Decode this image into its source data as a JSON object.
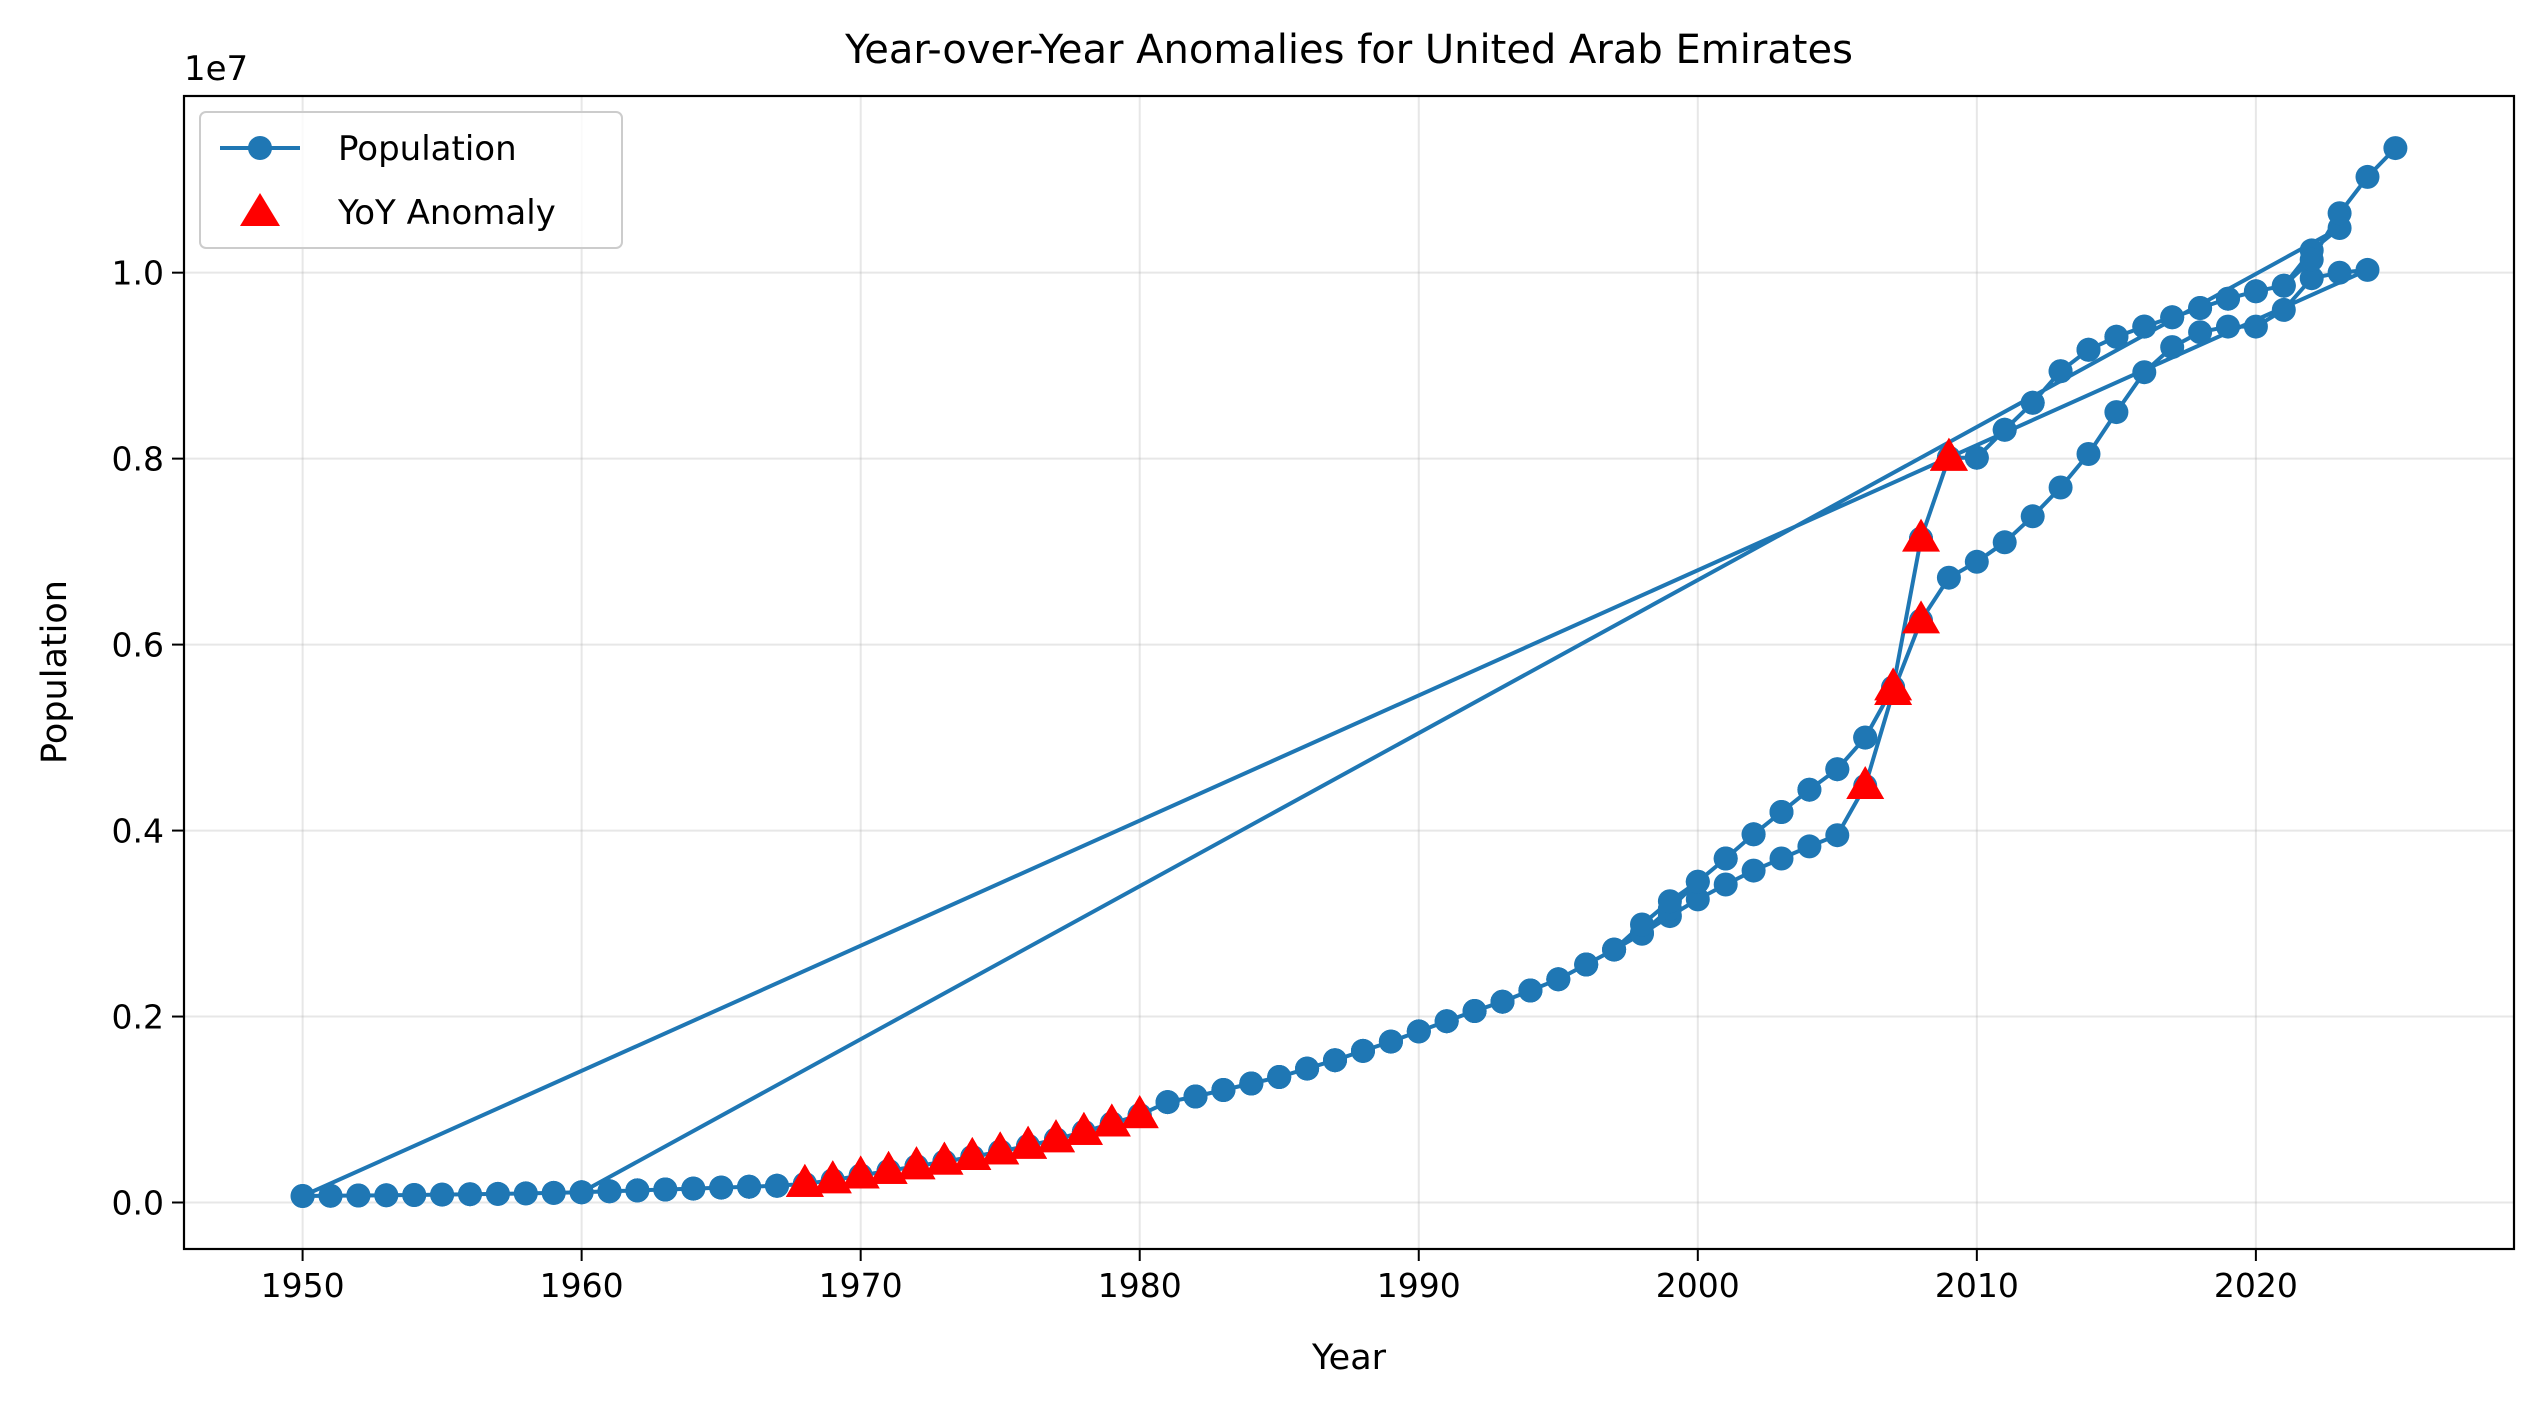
{
  "chart_data": {
    "type": "line",
    "title": "Year-over-Year Anomalies for United Arab Emirates",
    "xlabel": "Year",
    "ylabel": "Population",
    "y_offset_label": "1e7",
    "xlim": [
      1945.75,
      2029.25
    ],
    "ylim": [
      -500000,
      11900000
    ],
    "x_ticks": [
      1950,
      1960,
      1970,
      1980,
      1990,
      2000,
      2010,
      2020
    ],
    "x_tick_labels": [
      "1950",
      "1960",
      "1970",
      "1980",
      "1990",
      "2000",
      "2010",
      "2020"
    ],
    "y_ticks": [
      0,
      2000000,
      4000000,
      6000000,
      8000000,
      10000000
    ],
    "y_tick_labels": [
      "0.0",
      "0.2",
      "0.4",
      "0.6",
      "0.8",
      "1.0"
    ],
    "grid": true,
    "legend_position": "top-left",
    "colors": {
      "population": "#1f77b4",
      "anomaly": "#ff0000"
    },
    "series": [
      {
        "name": "Population",
        "style": "line-with-circle-markers",
        "x": [
          1950,
          1951,
          1952,
          1953,
          1954,
          1955,
          1956,
          1957,
          1958,
          1959,
          1960,
          1961,
          1962,
          1963,
          1964,
          1965,
          1966,
          1967,
          1968,
          1969,
          1970,
          1971,
          1972,
          1973,
          1974,
          1975,
          1976,
          1977,
          1978,
          1979,
          1980,
          1981,
          1982,
          1983,
          1984,
          1985,
          1986,
          1987,
          1988,
          1989,
          1990,
          1991,
          1992,
          1993,
          1994,
          1995,
          1996,
          1997,
          1998,
          1999,
          2000,
          2001,
          2002,
          2003,
          2004,
          2005,
          2006,
          2007,
          2008,
          2009,
          2010,
          2011,
          2012,
          2013,
          2014,
          2015,
          2016,
          2017,
          2018,
          2019,
          2020,
          2021,
          2022,
          2023,
          2024,
          1950,
          1951,
          1952,
          1953,
          1954,
          1955,
          1956,
          1957,
          1958,
          1959,
          1960,
          1961,
          1962,
          1963,
          1964,
          1965,
          1966,
          1967,
          1968,
          1969,
          1970,
          1971,
          1972,
          1973,
          1974,
          1975,
          1976,
          1977,
          1978,
          1979,
          1980,
          1981,
          1982,
          1983,
          1984,
          1985,
          1986,
          1987,
          1988,
          1989,
          1990,
          1991,
          1992,
          1993,
          1994,
          1995,
          1996,
          1997,
          1998,
          1999,
          2000,
          2001,
          2002,
          2003,
          2004,
          2005,
          2006,
          2007,
          2008,
          2009,
          2010,
          2011,
          2012,
          2013,
          2014,
          2015,
          2016,
          2017,
          2018,
          2019,
          2020,
          2021,
          2022,
          2023,
          1960,
          1961,
          1962,
          1963,
          1964,
          1965,
          1966,
          1967,
          1968,
          1969,
          1970,
          1971,
          1972,
          1973,
          1974,
          1975,
          1976,
          1977,
          1978,
          1979,
          1980,
          1981,
          1982,
          1983,
          1984,
          1985,
          1986,
          1987,
          1988,
          1989,
          1990,
          1991,
          1992,
          1993,
          1994,
          1995,
          1996,
          1997,
          1998,
          1999,
          2000,
          2001,
          2002,
          2003,
          2004,
          2005,
          2006,
          2007,
          2008,
          2009,
          2010,
          2011,
          2012,
          2013,
          2014,
          2015,
          2016,
          2017,
          2018,
          2019,
          2020,
          2021,
          2022,
          2023,
          2024,
          2025
        ],
        "values": [
          70000,
          72000,
          75000,
          78000,
          81000,
          85000,
          89000,
          93000,
          98000,
          103000,
          110000,
          120000,
          130000,
          140000,
          150000,
          160000,
          170000,
          180000,
          200000,
          240000,
          290000,
          340000,
          390000,
          440000,
          490000,
          550000,
          610000,
          680000,
          760000,
          850000,
          940000,
          1080000,
          1140000,
          1210000,
          1280000,
          1350000,
          1440000,
          1530000,
          1630000,
          1730000,
          1840000,
          1950000,
          2060000,
          2160000,
          2280000,
          2400000,
          2560000,
          2720000,
          2890000,
          3080000,
          3260000,
          3420000,
          3570000,
          3700000,
          3830000,
          3950000,
          4480000,
          5490000,
          6260000,
          6720000,
          6890000,
          7100000,
          7380000,
          7690000,
          8050000,
          8500000,
          8930000,
          9200000,
          9360000,
          9420000,
          9420000,
          9600000,
          9940000,
          10000000,
          10030000,
          70000,
          72000,
          75000,
          78000,
          81000,
          85000,
          89000,
          93000,
          98000,
          103000,
          110000,
          120000,
          130000,
          140000,
          150000,
          160000,
          170000,
          180000,
          200000,
          240000,
          290000,
          340000,
          390000,
          440000,
          490000,
          550000,
          610000,
          680000,
          760000,
          850000,
          940000,
          1080000,
          1140000,
          1210000,
          1280000,
          1350000,
          1440000,
          1530000,
          1630000,
          1730000,
          1840000,
          1950000,
          2060000,
          2160000,
          2280000,
          2400000,
          2560000,
          2720000,
          2900000,
          3160000,
          3450000,
          3700000,
          3960000,
          4200000,
          4440000,
          4660000,
          5000000,
          5540000,
          7140000,
          8010000,
          8010000,
          8310000,
          8600000,
          8940000,
          9170000,
          9310000,
          9420000,
          9520000,
          9620000,
          9720000,
          9800000,
          9860000,
          10240000,
          10480000,
          110000,
          120000,
          130000,
          140000,
          150000,
          160000,
          170000,
          180000,
          200000,
          240000,
          290000,
          340000,
          390000,
          440000,
          490000,
          550000,
          610000,
          680000,
          760000,
          850000,
          940000,
          1080000,
          1140000,
          1210000,
          1280000,
          1350000,
          1440000,
          1530000,
          1630000,
          1730000,
          1840000,
          1950000,
          2060000,
          2160000,
          2280000,
          2400000,
          2560000,
          2720000,
          2990000,
          3240000,
          3450000,
          3700000,
          3960000,
          4200000,
          4440000,
          4660000,
          5000000,
          5540000,
          7140000,
          8010000,
          8010000,
          8310000,
          8600000,
          8940000,
          9170000,
          9310000,
          9420000,
          9520000,
          9620000,
          9720000,
          9800000,
          9860000,
          10140000,
          10640000,
          11030000,
          11340000
        ]
      },
      {
        "name": "YoY Anomaly",
        "style": "red-triangle-markers",
        "x": [
          1968,
          1969,
          1970,
          1971,
          1972,
          1973,
          1974,
          1975,
          1976,
          1977,
          1978,
          1979,
          1980,
          2006,
          2007,
          2008,
          2009,
          1968,
          1969,
          1970,
          1971,
          1972,
          1973,
          1974,
          1975,
          1976,
          1977,
          1978,
          1979,
          1980,
          2007,
          2008,
          2009
        ],
        "values": [
          200000,
          240000,
          290000,
          340000,
          390000,
          440000,
          490000,
          550000,
          610000,
          680000,
          760000,
          850000,
          940000,
          4480000,
          5490000,
          6260000,
          8010000,
          200000,
          240000,
          290000,
          340000,
          390000,
          440000,
          490000,
          550000,
          610000,
          680000,
          760000,
          850000,
          940000,
          5540000,
          7140000,
          8010000
        ]
      }
    ]
  }
}
